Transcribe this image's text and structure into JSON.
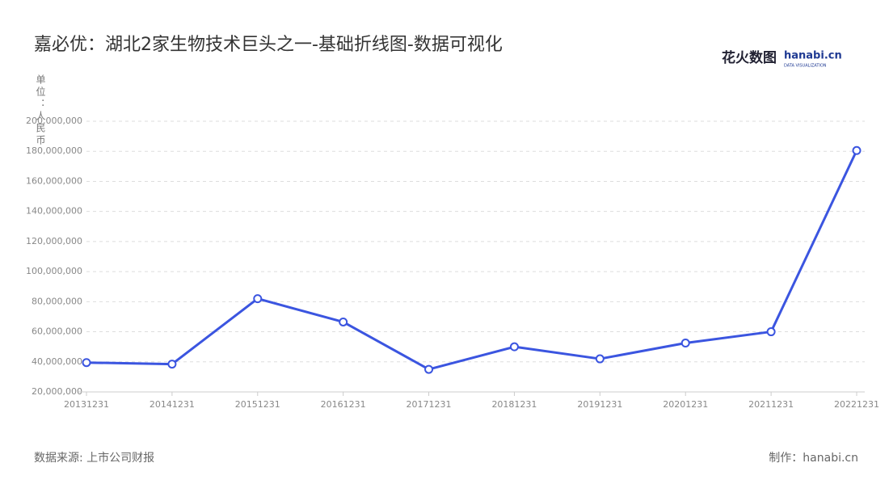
{
  "chart_data": {
    "type": "line",
    "title": "嘉必优：湖北2家生物技术巨头之一-基础折线图-数据可视化",
    "y_label": "单位：人民币",
    "source": "数据来源: 上市公司财报",
    "credit": "制作：hanabi.cn",
    "logo": "花火数图",
    "logo_brand": "hanabi.cn",
    "logo_sub": "DATA VISUALIZATION",
    "categories": [
      "20131231",
      "20141231",
      "20151231",
      "20161231",
      "20171231",
      "20181231",
      "20191231",
      "20201231",
      "20211231",
      "20221231"
    ],
    "series": [
      {
        "color": "#3b55e0",
        "values": [
          39500000,
          38500000,
          82000000,
          66500000,
          35000000,
          50000000,
          42000000,
          52500000,
          60000000,
          180500000
        ]
      }
    ],
    "ylim": [
      20000000,
      200000000
    ],
    "yticks": [
      {
        "value": 20000000,
        "label": "20,000,000"
      },
      {
        "value": 40000000,
        "label": "40,000,000"
      },
      {
        "value": 60000000,
        "label": "60,000,000"
      },
      {
        "value": 80000000,
        "label": "80,000,000"
      },
      {
        "value": 100000000,
        "label": "100,000,000"
      },
      {
        "value": 120000000,
        "label": "120,000,000"
      },
      {
        "value": 140000000,
        "label": "140,000,000"
      },
      {
        "value": 160000000,
        "label": "160,000,000"
      },
      {
        "value": 180000000,
        "label": "180,000,000"
      },
      {
        "value": 200000000,
        "label": "200,000,000"
      }
    ],
    "grid": true
  }
}
